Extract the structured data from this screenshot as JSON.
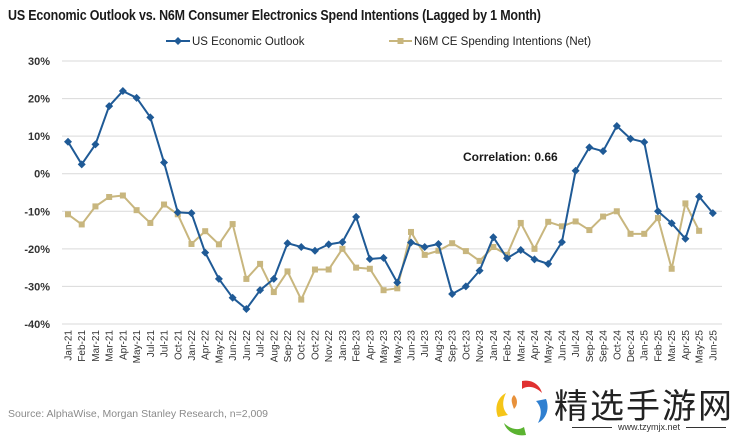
{
  "chart_data": {
    "type": "line",
    "title": "US Economic Outlook vs. N6M Consumer Electronics Spend Intentions (Lagged by 1 Month)",
    "xlabel": "",
    "ylabel": "",
    "ylim": [
      -40,
      30
    ],
    "yticks": [
      30,
      20,
      10,
      0,
      -10,
      -20,
      -30,
      -40
    ],
    "ytick_labels": [
      "30%",
      "20%",
      "10%",
      "0%",
      "-10%",
      "-20%",
      "-30%",
      "-40%"
    ],
    "grid": true,
    "legend_position": "top-center",
    "categories": [
      "Jan-21",
      "Feb-21",
      "Mar-21",
      "Mar-21",
      "Apr-21",
      "May-21",
      "Jul-21",
      "Jul-21",
      "Oct-21",
      "Jan-22",
      "Apr-22",
      "May-22",
      "Jun-22",
      "Jun-22",
      "Jul-22",
      "Aug-22",
      "Sep-22",
      "Oct-22",
      "Oct-22",
      "Nov-22",
      "Jan-23",
      "Feb-23",
      "Apr-23",
      "May-23",
      "May-23",
      "Jun-23",
      "Jul-23",
      "Aug-23",
      "Sep-23",
      "Oct-23",
      "Nov-23",
      "Jan-24",
      "Feb-24",
      "Mar-24",
      "Apr-24",
      "May-24",
      "Jun-24",
      "Jul-24",
      "Sep-24",
      "Sep-24",
      "Oct-24",
      "Dec-24",
      "Jan-25",
      "Feb-25",
      "Mar-25",
      "Apr-25",
      "May-25",
      "Jun-25"
    ],
    "series": [
      {
        "name": "US Economic Outlook",
        "color": "#1f5a96",
        "marker": "diamond",
        "values": [
          8.5,
          2.5,
          7.8,
          18.0,
          22.0,
          20.2,
          15.0,
          3.0,
          -10.3,
          -10.5,
          -21.0,
          -28.0,
          -33.0,
          -36.0,
          -31.0,
          -28.0,
          -18.5,
          -19.5,
          -20.5,
          -18.8,
          -18.2,
          -11.5,
          -22.7,
          -22.4,
          -29.0,
          -18.3,
          -19.5,
          -18.7,
          -32.0,
          -30.0,
          -25.8,
          -16.9,
          -22.5,
          -20.3,
          -22.8,
          -24.0,
          -18.2,
          0.8,
          7.0,
          6.0,
          12.7,
          9.3,
          8.4,
          -10.0,
          -13.2,
          -17.3,
          -6.1,
          -10.5
        ]
      },
      {
        "name": "N6M CE Spending Intentions (Net)",
        "color": "#c8b67e",
        "marker": "square",
        "values": [
          -10.8,
          -13.5,
          -8.7,
          -6.2,
          -5.8,
          -9.7,
          -13.1,
          -8.2,
          -10.8,
          -18.7,
          -15.3,
          -18.8,
          -13.4,
          -28.0,
          -24.0,
          -31.5,
          -26.0,
          -33.5,
          -25.5,
          -25.5,
          -20.0,
          -25.0,
          -25.3,
          -31.0,
          -30.5,
          -15.5,
          -21.6,
          -20.5,
          -18.5,
          -20.6,
          -23.2,
          -19.5,
          -21.6,
          -13.1,
          -20.0,
          -12.8,
          -14.0,
          -12.7,
          -15.0,
          -11.4,
          -10.0,
          -16.0,
          -16.0,
          -11.8,
          -25.3,
          -7.9,
          -15.2,
          null
        ]
      }
    ],
    "annotations": [
      {
        "text": "Correlation: 0.66",
        "x": "Apr-24",
        "y": -4
      }
    ]
  },
  "source": "Source: AlphaWise, Morgan Stanley Research, n=2,009",
  "watermark": {
    "text": "精选手游网",
    "url": "www.tzymjx.net"
  }
}
